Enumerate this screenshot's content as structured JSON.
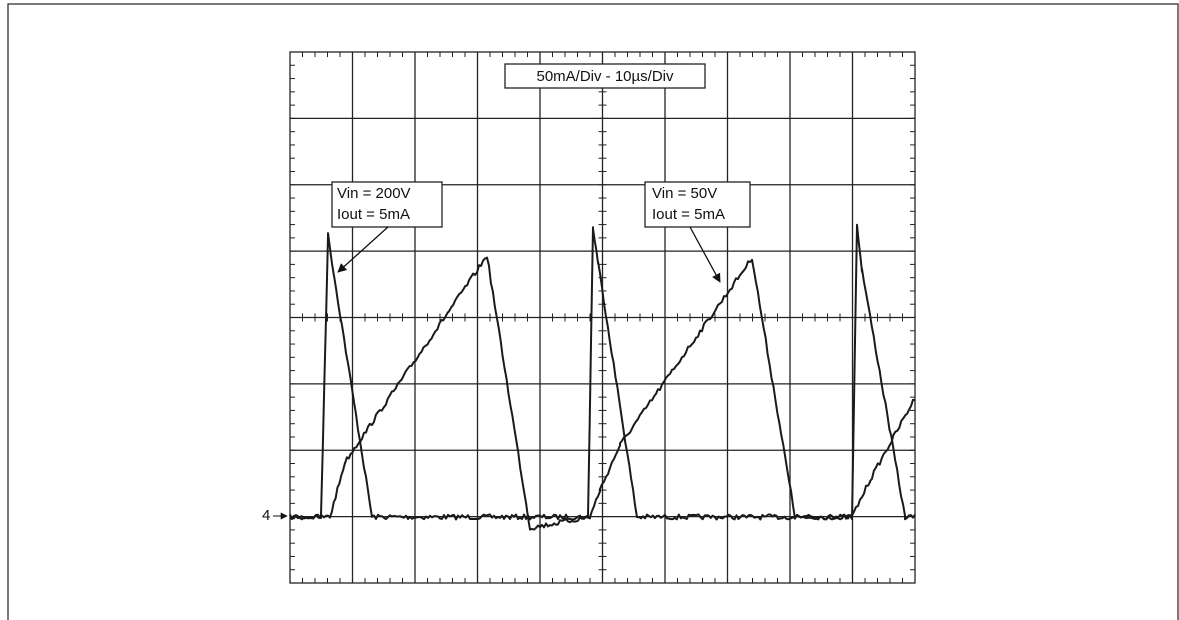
{
  "scale_label": "50mA/Div - 10µs/Div",
  "annotations": [
    {
      "line1": "Vin = 200V",
      "line2": "Iout = 5mA"
    },
    {
      "line1": "Vin = 50V",
      "line2": "Iout = 5mA"
    }
  ],
  "channel_marker": "4"
}
